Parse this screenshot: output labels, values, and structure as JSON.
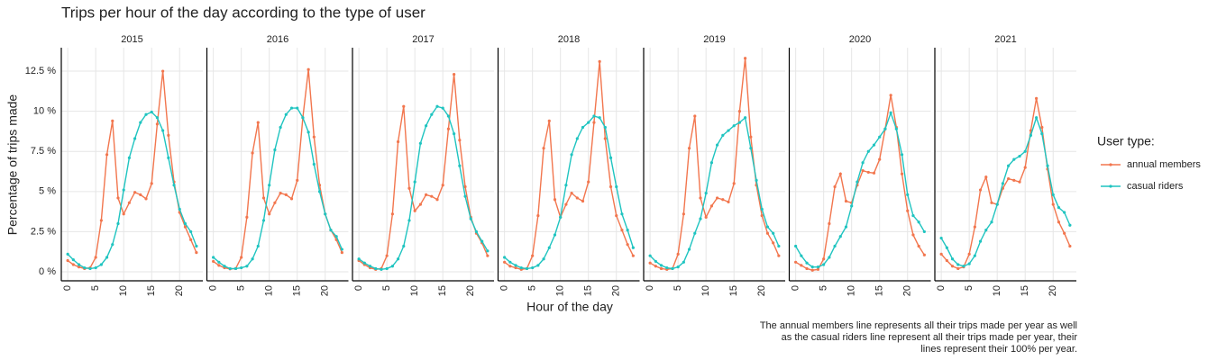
{
  "title": "Trips per hour of the day according to the type of user",
  "x_label": "Hour of the day",
  "y_label": "Percentage of trips made",
  "legend_title": "User type:",
  "caption": [
    "The annual members line represents all their trips made per year as well",
    "as the casual riders line represent all their trips made per year, their",
    "lines represent their 100% per year."
  ],
  "chart_data": [
    {
      "type": "line",
      "title": "2015",
      "grid": true,
      "x": [
        0,
        1,
        2,
        3,
        4,
        5,
        6,
        7,
        8,
        9,
        10,
        11,
        12,
        13,
        14,
        15,
        16,
        17,
        18,
        19,
        20,
        21,
        22,
        23
      ],
      "xlim": [
        -1.15,
        24.15
      ],
      "xticks": [
        0,
        5,
        10,
        15,
        20
      ],
      "ylim": [
        -0.56,
        13.96
      ],
      "yticks": [
        {
          "value": 0,
          "label": "0 %"
        },
        {
          "value": 2.5,
          "label": "2.5 %"
        },
        {
          "value": 5,
          "label": "5 %"
        },
        {
          "value": 7.5,
          "label": "7.5 %"
        },
        {
          "value": 10,
          "label": "10 %"
        },
        {
          "value": 12.5,
          "label": "12.5 %"
        }
      ],
      "series": [
        {
          "name": "annual members",
          "color": "#F2764E",
          "values": [
            0.7,
            0.45,
            0.3,
            0.2,
            0.25,
            0.9,
            3.2,
            7.3,
            9.4,
            4.6,
            3.6,
            4.3,
            4.95,
            4.8,
            4.55,
            5.5,
            9.2,
            12.5,
            8.5,
            5.6,
            3.7,
            2.8,
            2.0,
            1.2
          ]
        },
        {
          "name": "casual riders",
          "color": "#1FC4C0",
          "values": [
            1.1,
            0.75,
            0.45,
            0.25,
            0.2,
            0.25,
            0.45,
            0.9,
            1.7,
            3.0,
            5.1,
            7.1,
            8.3,
            9.3,
            9.8,
            9.95,
            9.6,
            8.8,
            7.1,
            5.4,
            3.9,
            3.0,
            2.5,
            1.6
          ]
        }
      ]
    },
    {
      "type": "line",
      "title": "2016",
      "grid": true,
      "x": [
        0,
        1,
        2,
        3,
        4,
        5,
        6,
        7,
        8,
        9,
        10,
        11,
        12,
        13,
        14,
        15,
        16,
        17,
        18,
        19,
        20,
        21,
        22,
        23
      ],
      "xlim": [
        -1.15,
        24.15
      ],
      "xticks": [
        0,
        5,
        10,
        15,
        20
      ],
      "ylim": [
        -0.56,
        13.96
      ],
      "yticks": [
        {
          "value": 0,
          "label": "0 %"
        },
        {
          "value": 2.5,
          "label": "2.5 %"
        },
        {
          "value": 5,
          "label": "5 %"
        },
        {
          "value": 7.5,
          "label": "7.5 %"
        },
        {
          "value": 10,
          "label": "10 %"
        },
        {
          "value": 12.5,
          "label": "12.5 %"
        }
      ],
      "series": [
        {
          "name": "annual members",
          "color": "#F2764E",
          "values": [
            0.65,
            0.4,
            0.25,
            0.18,
            0.2,
            0.9,
            3.4,
            7.4,
            9.3,
            4.6,
            3.6,
            4.3,
            4.9,
            4.8,
            4.55,
            5.7,
            9.6,
            12.6,
            8.4,
            5.4,
            3.6,
            2.6,
            2.0,
            1.2
          ]
        },
        {
          "name": "casual riders",
          "color": "#1FC4C0",
          "values": [
            0.9,
            0.6,
            0.35,
            0.2,
            0.2,
            0.25,
            0.35,
            0.8,
            1.6,
            3.2,
            5.4,
            7.6,
            9.0,
            9.8,
            10.2,
            10.2,
            9.6,
            8.7,
            6.7,
            5.0,
            3.6,
            2.6,
            2.2,
            1.4
          ]
        }
      ]
    },
    {
      "type": "line",
      "title": "2017",
      "grid": true,
      "x": [
        0,
        1,
        2,
        3,
        4,
        5,
        6,
        7,
        8,
        9,
        10,
        11,
        12,
        13,
        14,
        15,
        16,
        17,
        18,
        19,
        20,
        21,
        22,
        23
      ],
      "xlim": [
        -1.15,
        24.15
      ],
      "xticks": [
        0,
        5,
        10,
        15,
        20
      ],
      "ylim": [
        -0.56,
        13.96
      ],
      "yticks": [
        {
          "value": 0,
          "label": "0 %"
        },
        {
          "value": 2.5,
          "label": "2.5 %"
        },
        {
          "value": 5,
          "label": "5 %"
        },
        {
          "value": 7.5,
          "label": "7.5 %"
        },
        {
          "value": 10,
          "label": "10 %"
        },
        {
          "value": 12.5,
          "label": "12.5 %"
        }
      ],
      "series": [
        {
          "name": "annual members",
          "color": "#F2764E",
          "values": [
            0.7,
            0.45,
            0.25,
            0.15,
            0.2,
            1.0,
            3.6,
            8.1,
            10.3,
            5.2,
            3.8,
            4.2,
            4.8,
            4.7,
            4.5,
            5.4,
            8.9,
            12.3,
            8.2,
            5.3,
            3.4,
            2.4,
            1.8,
            1.0
          ]
        },
        {
          "name": "casual riders",
          "color": "#1FC4C0",
          "values": [
            0.8,
            0.55,
            0.35,
            0.2,
            0.15,
            0.2,
            0.35,
            0.8,
            1.6,
            3.2,
            5.6,
            8.0,
            9.1,
            9.8,
            10.3,
            10.2,
            9.7,
            8.6,
            6.6,
            4.7,
            3.3,
            2.5,
            1.9,
            1.3
          ]
        }
      ]
    },
    {
      "type": "line",
      "title": "2018",
      "grid": true,
      "x": [
        0,
        1,
        2,
        3,
        4,
        5,
        6,
        7,
        8,
        9,
        10,
        11,
        12,
        13,
        14,
        15,
        16,
        17,
        18,
        19,
        20,
        21,
        22,
        23
      ],
      "xlim": [
        -1.15,
        24.15
      ],
      "xticks": [
        0,
        5,
        10,
        15,
        20
      ],
      "ylim": [
        -0.56,
        13.96
      ],
      "yticks": [
        {
          "value": 0,
          "label": "0 %"
        },
        {
          "value": 2.5,
          "label": "2.5 %"
        },
        {
          "value": 5,
          "label": "5 %"
        },
        {
          "value": 7.5,
          "label": "7.5 %"
        },
        {
          "value": 10,
          "label": "10 %"
        },
        {
          "value": 12.5,
          "label": "12.5 %"
        }
      ],
      "series": [
        {
          "name": "annual members",
          "color": "#F2764E",
          "values": [
            0.6,
            0.35,
            0.25,
            0.15,
            0.2,
            1.0,
            3.5,
            7.7,
            9.4,
            4.5,
            3.4,
            4.2,
            4.9,
            4.6,
            4.4,
            5.6,
            9.3,
            13.1,
            8.3,
            5.3,
            3.5,
            2.6,
            1.7,
            1.0
          ]
        },
        {
          "name": "casual riders",
          "color": "#1FC4C0",
          "values": [
            0.9,
            0.6,
            0.4,
            0.25,
            0.2,
            0.25,
            0.4,
            0.8,
            1.5,
            2.3,
            3.4,
            5.4,
            7.3,
            8.3,
            9.0,
            9.3,
            9.7,
            9.6,
            9.0,
            7.1,
            5.3,
            3.6,
            2.6,
            1.5
          ]
        }
      ]
    },
    {
      "type": "line",
      "title": "2019",
      "grid": true,
      "x": [
        0,
        1,
        2,
        3,
        4,
        5,
        6,
        7,
        8,
        9,
        10,
        11,
        12,
        13,
        14,
        15,
        16,
        17,
        18,
        19,
        20,
        21,
        22,
        23
      ],
      "xlim": [
        -1.15,
        24.15
      ],
      "xticks": [
        0,
        5,
        10,
        15,
        20
      ],
      "ylim": [
        -0.56,
        13.96
      ],
      "yticks": [
        {
          "value": 0,
          "label": "0 %"
        },
        {
          "value": 2.5,
          "label": "2.5 %"
        },
        {
          "value": 5,
          "label": "5 %"
        },
        {
          "value": 7.5,
          "label": "7.5 %"
        },
        {
          "value": 10,
          "label": "10 %"
        },
        {
          "value": 12.5,
          "label": "12.5 %"
        }
      ],
      "series": [
        {
          "name": "annual members",
          "color": "#F2764E",
          "values": [
            0.55,
            0.35,
            0.2,
            0.15,
            0.2,
            1.1,
            3.6,
            7.7,
            9.7,
            4.6,
            3.4,
            4.1,
            4.6,
            4.5,
            4.35,
            5.5,
            10.0,
            13.3,
            8.4,
            5.4,
            3.5,
            2.4,
            1.8,
            1.0
          ]
        },
        {
          "name": "casual riders",
          "color": "#1FC4C0",
          "values": [
            1.0,
            0.65,
            0.4,
            0.25,
            0.2,
            0.3,
            0.6,
            1.4,
            2.4,
            3.3,
            4.9,
            6.8,
            7.9,
            8.5,
            8.8,
            9.1,
            9.3,
            9.6,
            7.7,
            5.7,
            3.9,
            2.8,
            2.4,
            1.6
          ]
        }
      ]
    },
    {
      "type": "line",
      "title": "2020",
      "grid": true,
      "x": [
        0,
        1,
        2,
        3,
        4,
        5,
        6,
        7,
        8,
        9,
        10,
        11,
        12,
        13,
        14,
        15,
        16,
        17,
        18,
        19,
        20,
        21,
        22,
        23
      ],
      "xlim": [
        -1.15,
        24.15
      ],
      "xticks": [
        0,
        5,
        10,
        15,
        20
      ],
      "ylim": [
        -0.56,
        13.96
      ],
      "yticks": [
        {
          "value": 0,
          "label": "0 %"
        },
        {
          "value": 2.5,
          "label": "2.5 %"
        },
        {
          "value": 5,
          "label": "5 %"
        },
        {
          "value": 7.5,
          "label": "7.5 %"
        },
        {
          "value": 10,
          "label": "10 %"
        },
        {
          "value": 12.5,
          "label": "12.5 %"
        }
      ],
      "series": [
        {
          "name": "annual members",
          "color": "#F2764E",
          "values": [
            0.6,
            0.4,
            0.2,
            0.1,
            0.15,
            0.8,
            3.0,
            5.3,
            6.1,
            4.4,
            4.3,
            5.4,
            6.3,
            6.2,
            6.15,
            7.0,
            8.9,
            11.0,
            9.0,
            6.1,
            3.8,
            2.3,
            1.6,
            1.05
          ]
        },
        {
          "name": "casual riders",
          "color": "#1FC4C0",
          "values": [
            1.6,
            1.0,
            0.55,
            0.3,
            0.3,
            0.45,
            0.9,
            1.6,
            2.2,
            2.8,
            4.1,
            5.6,
            6.8,
            7.5,
            7.9,
            8.4,
            8.9,
            9.9,
            8.9,
            7.3,
            4.8,
            3.5,
            3.1,
            2.5
          ]
        }
      ]
    },
    {
      "type": "line",
      "title": "2021",
      "grid": true,
      "x": [
        0,
        1,
        2,
        3,
        4,
        5,
        6,
        7,
        8,
        9,
        10,
        11,
        12,
        13,
        14,
        15,
        16,
        17,
        18,
        19,
        20,
        21,
        22,
        23
      ],
      "xlim": [
        -1.15,
        24.15
      ],
      "xticks": [
        0,
        5,
        10,
        15,
        20
      ],
      "ylim": [
        -0.56,
        13.96
      ],
      "yticks": [
        {
          "value": 0,
          "label": "0 %"
        },
        {
          "value": 2.5,
          "label": "2.5 %"
        },
        {
          "value": 5,
          "label": "5 %"
        },
        {
          "value": 7.5,
          "label": "7.5 %"
        },
        {
          "value": 10,
          "label": "10 %"
        },
        {
          "value": 12.5,
          "label": "12.5 %"
        }
      ],
      "series": [
        {
          "name": "annual members",
          "color": "#F2764E",
          "values": [
            1.1,
            0.7,
            0.35,
            0.2,
            0.3,
            1.1,
            2.8,
            5.1,
            5.9,
            4.3,
            4.2,
            5.2,
            5.8,
            5.7,
            5.6,
            6.5,
            8.8,
            10.8,
            9.0,
            6.4,
            4.2,
            3.1,
            2.4,
            1.6
          ]
        },
        {
          "name": "casual riders",
          "color": "#1FC4C0",
          "values": [
            2.1,
            1.5,
            0.8,
            0.45,
            0.35,
            0.5,
            1.0,
            1.9,
            2.6,
            3.1,
            4.2,
            5.5,
            6.6,
            7.0,
            7.2,
            7.5,
            8.5,
            9.6,
            8.6,
            6.6,
            4.8,
            4.0,
            3.7,
            2.9
          ]
        }
      ]
    }
  ]
}
